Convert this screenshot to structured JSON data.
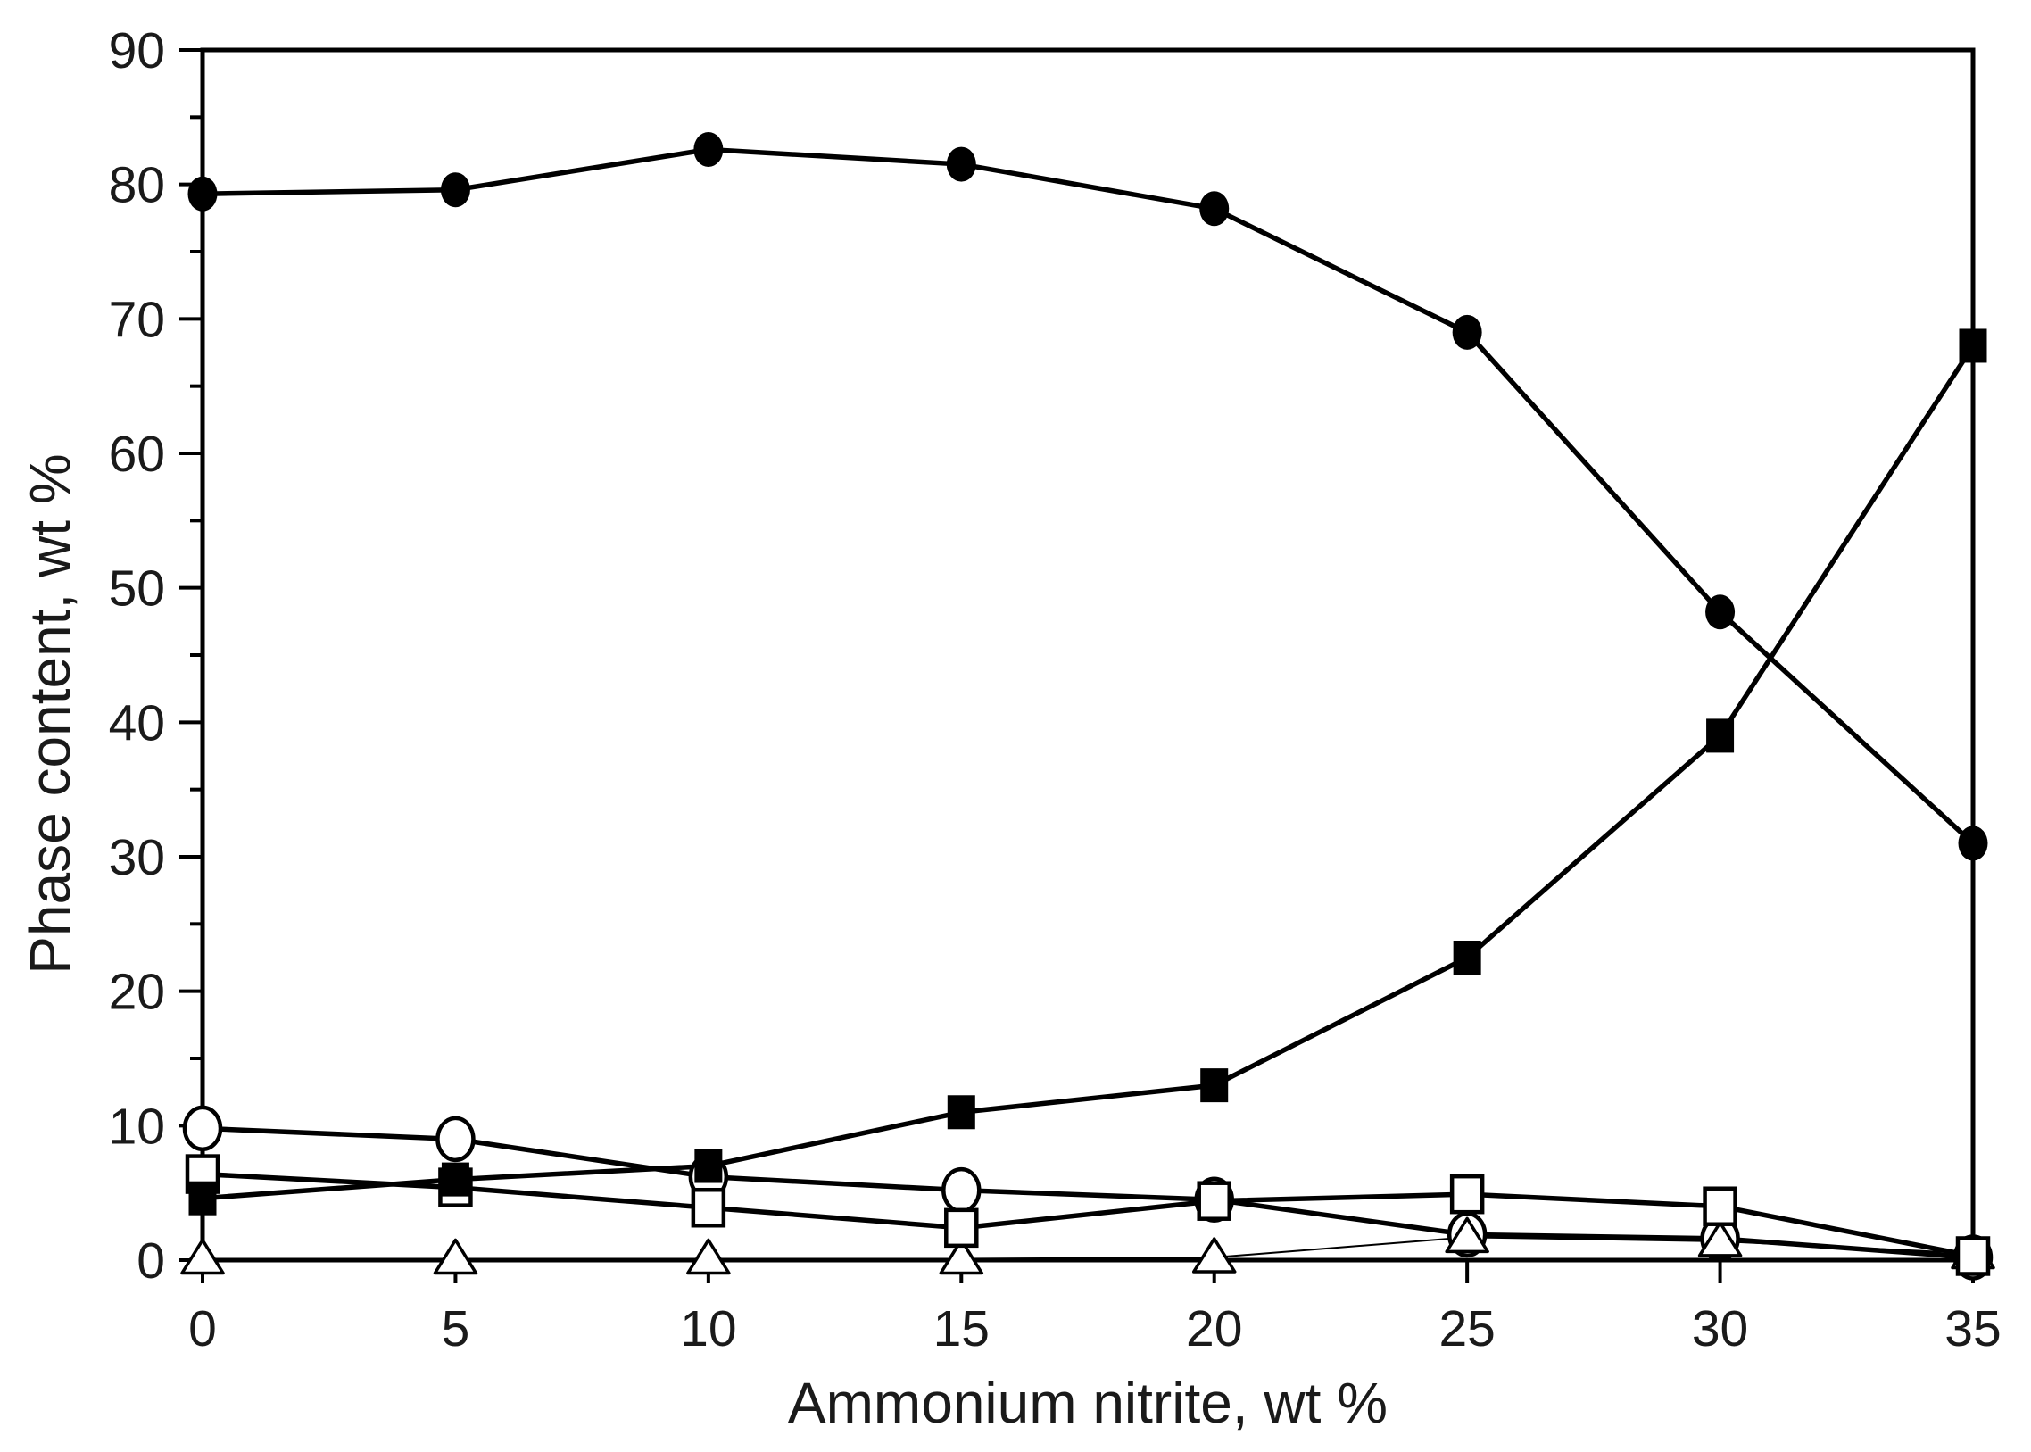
{
  "figure": {
    "background": "#ffffff",
    "ink": "#000000"
  },
  "chart_data": {
    "type": "line",
    "title": "",
    "xlabel": "Ammonium nitrite, wt %",
    "ylabel": "Phase content, wt %",
    "xlim": [
      0,
      35
    ],
    "ylim": [
      0,
      90
    ],
    "x_ticks": [
      0,
      5,
      10,
      15,
      20,
      25,
      30,
      35
    ],
    "y_ticks": [
      0,
      10,
      20,
      30,
      40,
      50,
      60,
      70,
      80,
      90
    ],
    "y_minor_ticks": [
      5,
      15,
      25,
      35,
      45,
      55,
      65,
      75,
      85
    ],
    "grid": false,
    "legend_position": "none",
    "x": [
      0,
      5,
      10,
      15,
      20,
      25,
      30,
      35
    ],
    "series": [
      {
        "name": "filled-circle",
        "marker": "circle",
        "marker_fill": "black",
        "line": "thick",
        "values": [
          79.3,
          79.6,
          82.6,
          81.5,
          78.2,
          69.0,
          48.2,
          31.0
        ]
      },
      {
        "name": "filled-square",
        "marker": "square",
        "marker_fill": "black",
        "line": "thick",
        "values": [
          4.6,
          6.0,
          7.0,
          11.0,
          13.0,
          22.5,
          39.0,
          68.0
        ]
      },
      {
        "name": "open-circle",
        "marker": "circle",
        "marker_fill": "white",
        "line": "thick",
        "values": [
          9.8,
          9.0,
          6.2,
          5.2,
          4.5,
          1.9,
          1.6,
          0.2
        ]
      },
      {
        "name": "open-square",
        "marker": "square",
        "marker_fill": "white",
        "line": "thick",
        "values": [
          6.4,
          5.4,
          3.9,
          2.4,
          4.4,
          4.9,
          4.0,
          0.3
        ]
      },
      {
        "name": "open-triangle",
        "marker": "triangle-up",
        "marker_fill": "white",
        "line": "thin",
        "values": [
          0.1,
          0.1,
          0.1,
          0.1,
          0.2,
          1.7,
          1.4,
          0.5
        ]
      }
    ]
  }
}
